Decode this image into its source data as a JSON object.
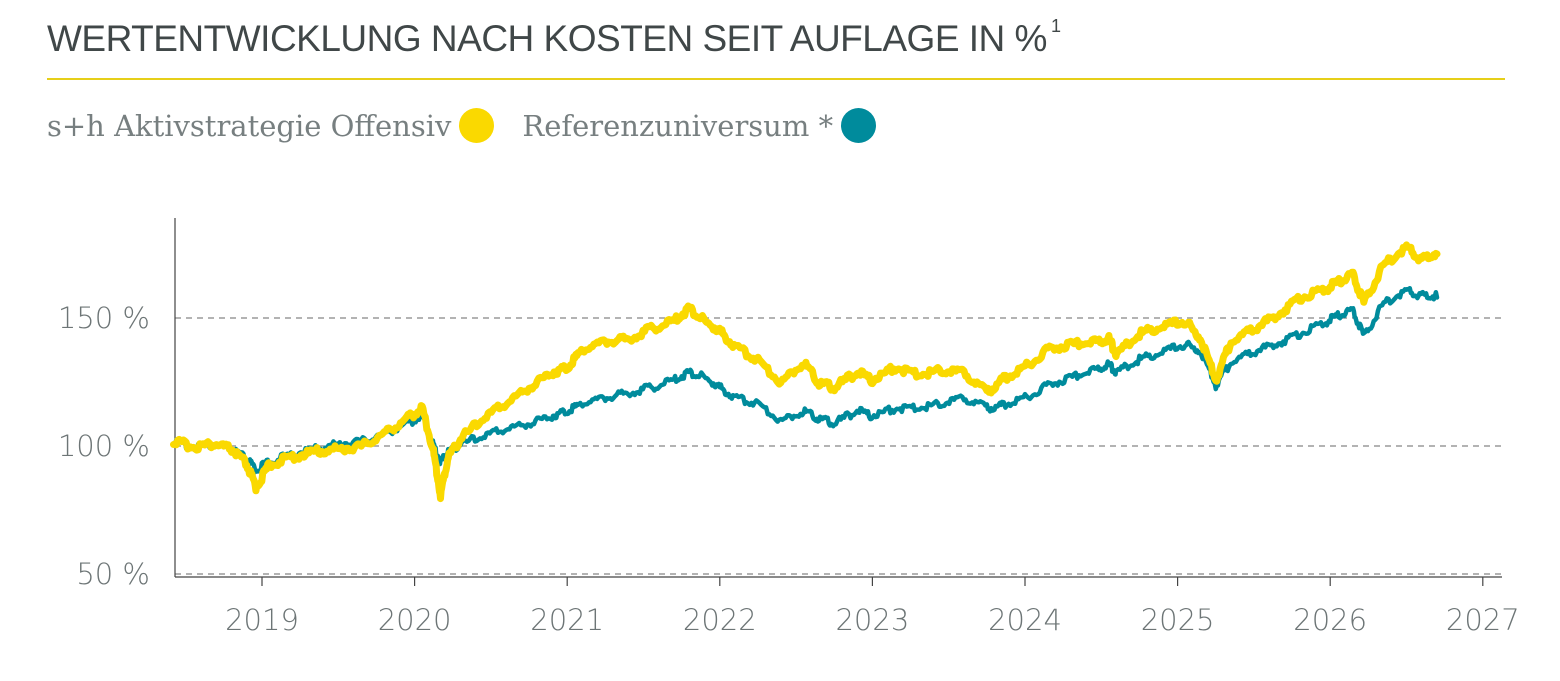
{
  "header": {
    "title": "WERTENTWICKLUNG NACH KOSTEN SEIT AUFLAGE IN %",
    "footnote": "1"
  },
  "legend": [
    {
      "label": "s+h Aktivstrategie Offensiv",
      "color": "#fad900"
    },
    {
      "label": "Referenzuniversum *",
      "color": "#008b9c"
    }
  ],
  "colors": {
    "accent_rule": "#e6cf19",
    "grid": "#9a9a9a",
    "axis": "#444444"
  },
  "chart_data": {
    "type": "line",
    "x_ticks": [
      "2019",
      "2020",
      "2021",
      "2022",
      "2023",
      "2024",
      "2025",
      "2026",
      "2027"
    ],
    "y_ticks": [
      "50 %",
      "100 %",
      "150 %"
    ],
    "ylim": [
      50,
      150
    ],
    "xlim": [
      2018.42,
      2027.15
    ],
    "grid": "horizontal dashed",
    "legend_position": "top-left",
    "series": [
      {
        "name": "s+h Aktivstrategie Offensiv",
        "color": "#fad900",
        "x": [
          2018.42,
          2018.55,
          2018.7,
          2018.8,
          2018.9,
          2018.96,
          2019.05,
          2019.2,
          2019.35,
          2019.5,
          2019.65,
          2019.8,
          2019.95,
          2020.05,
          2020.12,
          2020.17,
          2020.22,
          2020.3,
          2020.45,
          2020.6,
          2020.75,
          2020.9,
          2021.0,
          2021.1,
          2021.25,
          2021.4,
          2021.55,
          2021.7,
          2021.8,
          2021.9,
          2022.0,
          2022.1,
          2022.25,
          2022.4,
          2022.55,
          2022.65,
          2022.75,
          2022.9,
          2023.0,
          2023.15,
          2023.3,
          2023.45,
          2023.6,
          2023.75,
          2023.85,
          2024.0,
          2024.15,
          2024.3,
          2024.45,
          2024.55,
          2024.6,
          2024.75,
          2024.9,
          2025.05,
          2025.15,
          2025.25,
          2025.35,
          2025.5,
          2025.65,
          2025.8,
          2025.95,
          2026.05,
          2026.15,
          2026.22,
          2026.35,
          2026.5,
          2026.6,
          2026.7
        ],
        "values": [
          101,
          99,
          100,
          98,
          92,
          83,
          92,
          95,
          97,
          98,
          99,
          104,
          110,
          114,
          98,
          80,
          95,
          102,
          110,
          116,
          122,
          128,
          130,
          137,
          140,
          141,
          145,
          148,
          153,
          148,
          144,
          138,
          133,
          124,
          132,
          124,
          122,
          128,
          125,
          130,
          127,
          129,
          128,
          120,
          125,
          130,
          137,
          139,
          140,
          141,
          135,
          143,
          146,
          148,
          141,
          125,
          140,
          145,
          150,
          157,
          160,
          163,
          166,
          155,
          170,
          177,
          172,
          175
        ]
      },
      {
        "name": "Referenzuniversum *",
        "color": "#008b9c",
        "x": [
          2018.42,
          2018.55,
          2018.7,
          2018.8,
          2018.9,
          2018.96,
          2019.05,
          2019.2,
          2019.35,
          2019.5,
          2019.65,
          2019.8,
          2019.95,
          2020.05,
          2020.12,
          2020.17,
          2020.22,
          2020.3,
          2020.45,
          2020.6,
          2020.75,
          2020.9,
          2021.0,
          2021.1,
          2021.25,
          2021.4,
          2021.55,
          2021.7,
          2021.8,
          2021.9,
          2022.0,
          2022.1,
          2022.25,
          2022.4,
          2022.55,
          2022.65,
          2022.75,
          2022.9,
          2023.0,
          2023.15,
          2023.3,
          2023.45,
          2023.6,
          2023.75,
          2023.85,
          2024.0,
          2024.15,
          2024.3,
          2024.45,
          2024.55,
          2024.6,
          2024.75,
          2024.9,
          2025.05,
          2025.15,
          2025.25,
          2025.35,
          2025.5,
          2025.65,
          2025.8,
          2025.95,
          2026.05,
          2026.15,
          2026.22,
          2026.35,
          2026.5,
          2026.6,
          2026.7
        ],
        "values": [
          101,
          99,
          100,
          98,
          94,
          90,
          93,
          96,
          98,
          100,
          101,
          104,
          108,
          111,
          100,
          93,
          97,
          100,
          103,
          106,
          108,
          111,
          113,
          116,
          118,
          120,
          122,
          125,
          128,
          126,
          122,
          118,
          116,
          109,
          113,
          110,
          108,
          113,
          111,
          114,
          114,
          116,
          118,
          114,
          115,
          118,
          123,
          126,
          129,
          131,
          128,
          133,
          136,
          139,
          136,
          123,
          132,
          136,
          139,
          143,
          147,
          150,
          152,
          142,
          155,
          160,
          158,
          158
        ]
      }
    ]
  }
}
